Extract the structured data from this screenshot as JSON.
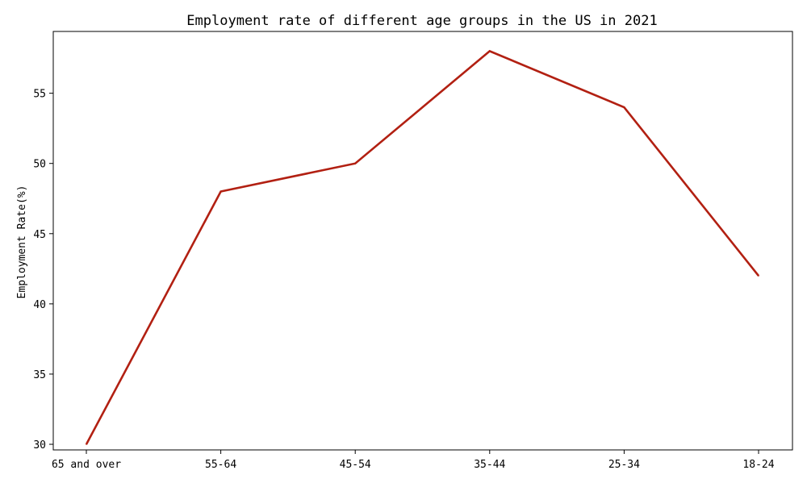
{
  "chart_data": {
    "type": "line",
    "title": "Employment rate of different age groups in the US in 2021",
    "xlabel": "",
    "ylabel": "Employment Rate(%)",
    "categories": [
      "65 and over",
      "55-64",
      "45-54",
      "35-44",
      "25-34",
      "18-24"
    ],
    "series": [
      {
        "values": [
          30,
          48,
          50,
          58,
          54,
          42
        ],
        "color": "#b22012"
      }
    ],
    "yticks": [
      30,
      35,
      40,
      45,
      50,
      55
    ],
    "ylim": [
      29.6,
      59.4
    ],
    "grid": false,
    "legend": "none"
  }
}
